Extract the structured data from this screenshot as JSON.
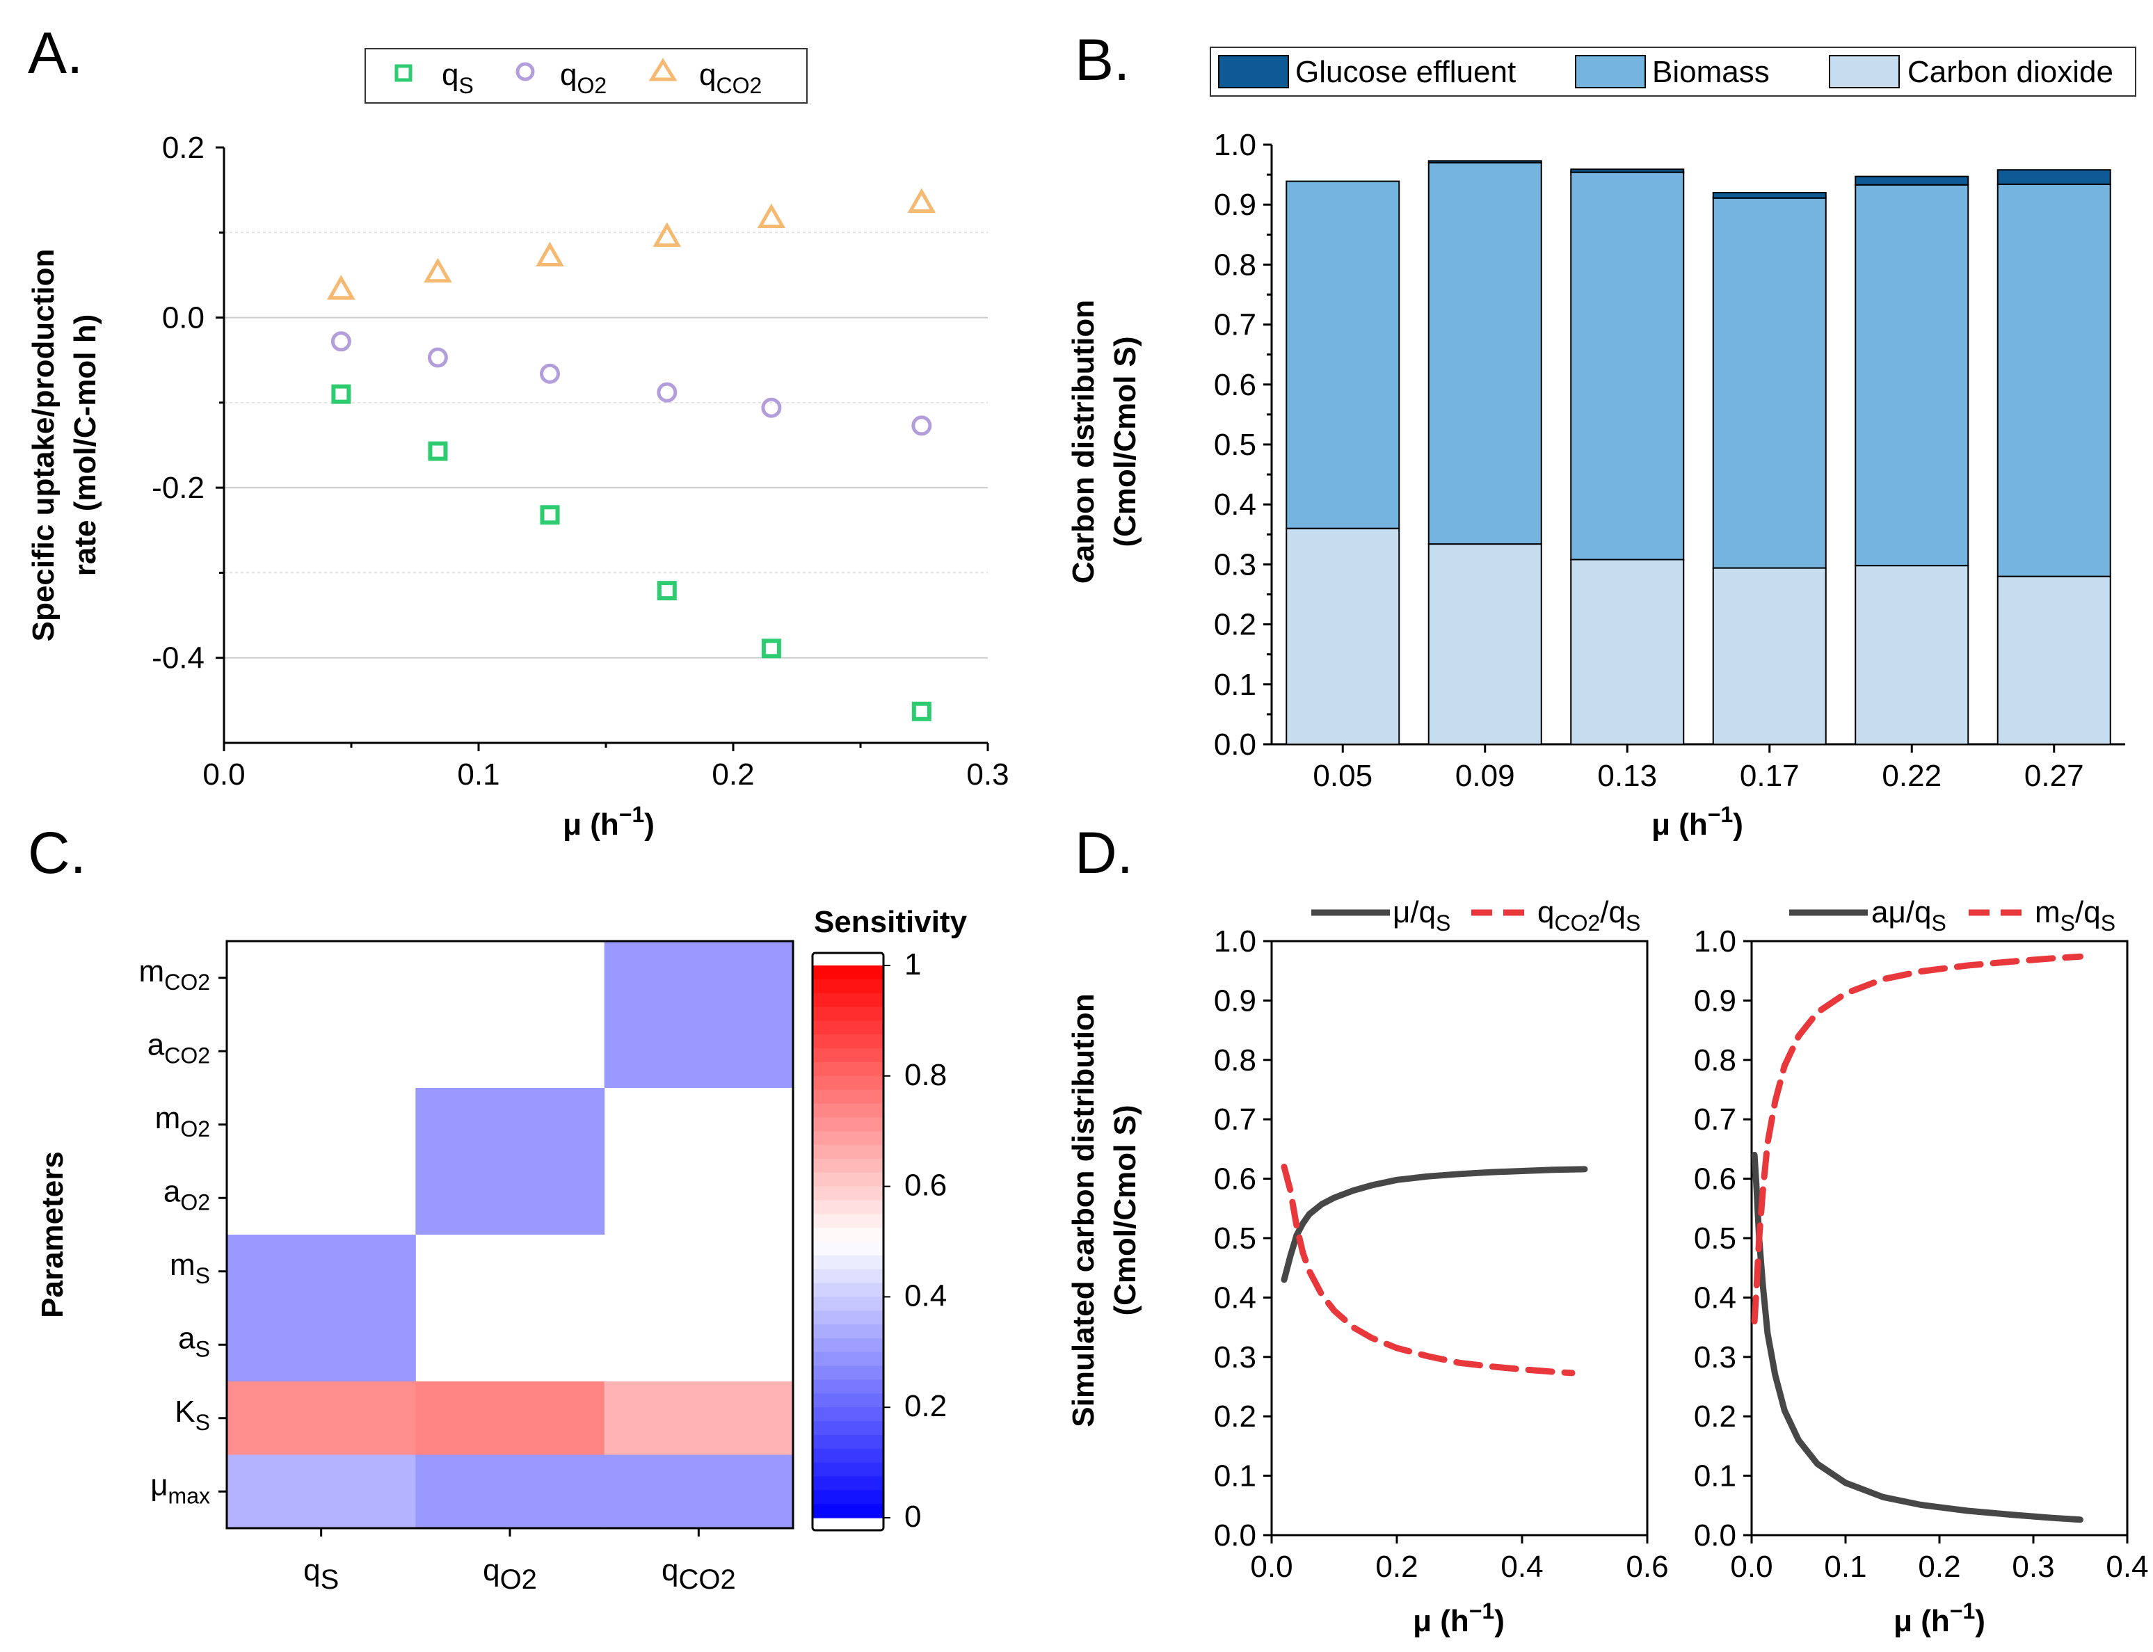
{
  "figure": {
    "panels": {
      "A": "A.",
      "B": "B.",
      "C": "C.",
      "D": "D."
    },
    "colors": {
      "qS": "#2ecc71",
      "qO2": "#b39ddb",
      "qCO2": "#f5b971",
      "glucose_effluent": "#0d5a94",
      "biomass": "#76b4e0",
      "carbon_dioxide": "#c6ddef",
      "curve_dark": "#474747",
      "curve_red": "#e8383b"
    }
  },
  "chart_data": [
    {
      "id": "A",
      "type": "scatter",
      "xlabel": "μ (h⁻¹)",
      "ylabel_line1": "Specific uptake/production",
      "ylabel_line2": "rate (mol/C-mol h)",
      "xlim": [
        0,
        0.3
      ],
      "ylim": [
        -0.5,
        0.2
      ],
      "xticks": [
        "0.0",
        "0.1",
        "0.2",
        "0.3"
      ],
      "yticks": [
        "0.2",
        "0.0",
        "-0.2",
        "-0.4"
      ],
      "x": [
        0.046,
        0.084,
        0.128,
        0.174,
        0.215,
        0.274
      ],
      "series": [
        {
          "name": "qS",
          "label": "q",
          "sub": "S",
          "marker": "square",
          "values": [
            -0.09,
            -0.157,
            -0.232,
            -0.321,
            -0.389,
            -0.463
          ]
        },
        {
          "name": "qO2",
          "label": "q",
          "sub": "O2",
          "marker": "circle",
          "values": [
            -0.028,
            -0.047,
            -0.066,
            -0.088,
            -0.106,
            -0.127
          ]
        },
        {
          "name": "qCO2",
          "label": "q",
          "sub": "CO2",
          "marker": "triangle",
          "values": [
            0.033,
            0.053,
            0.072,
            0.095,
            0.117,
            0.135
          ]
        }
      ]
    },
    {
      "id": "B",
      "type": "bar",
      "stacked": true,
      "xlabel": "μ (h⁻¹)",
      "ylabel_line1": "Carbon distribution",
      "ylabel_line2": "(Cmol/Cmol S)",
      "ylim": [
        0,
        1.0
      ],
      "yticks": [
        "0.0",
        "0.1",
        "0.2",
        "0.3",
        "0.4",
        "0.5",
        "0.6",
        "0.7",
        "0.8",
        "0.9",
        "1.0"
      ],
      "categories": [
        "0.05",
        "0.09",
        "0.13",
        "0.17",
        "0.22",
        "0.27"
      ],
      "series": [
        {
          "name": "Carbon dioxide",
          "values": [
            0.36,
            0.334,
            0.308,
            0.294,
            0.298,
            0.28
          ]
        },
        {
          "name": "Biomass",
          "values": [
            0.579,
            0.636,
            0.646,
            0.617,
            0.635,
            0.654
          ]
        },
        {
          "name": "Glucose effluent",
          "values": [
            0.0,
            0.003,
            0.005,
            0.009,
            0.014,
            0.024
          ]
        }
      ],
      "legend": [
        "Glucose effluent",
        "Biomass",
        "Carbon dioxide"
      ]
    },
    {
      "id": "C",
      "type": "heatmap",
      "ylabel": "Parameters",
      "colorbar_title": "Sensitivity",
      "colorbar_ticks": [
        "1",
        "0.8",
        "0.6",
        "0.4",
        "0.2",
        "0"
      ],
      "columns": [
        {
          "base": "q",
          "sub": "S"
        },
        {
          "base": "q",
          "sub": "O2"
        },
        {
          "base": "q",
          "sub": "CO2"
        }
      ],
      "rows": [
        {
          "base": "m",
          "sub": "CO2"
        },
        {
          "base": "a",
          "sub": "CO2"
        },
        {
          "base": "m",
          "sub": "O2"
        },
        {
          "base": "a",
          "sub": "O2"
        },
        {
          "base": "m",
          "sub": "S"
        },
        {
          "base": "a",
          "sub": "S"
        },
        {
          "base": "K",
          "sub": "S"
        },
        {
          "base": "μ",
          "sub": "max"
        }
      ],
      "blocks": [
        {
          "col": 2,
          "row_from": 0,
          "row_to": 1,
          "value": 0.3
        },
        {
          "col": 1,
          "row_from": 2,
          "row_to": 3,
          "value": 0.3
        },
        {
          "col": 0,
          "row_from": 4,
          "row_to": 5,
          "value": 0.3
        },
        {
          "col": 0,
          "row_from": 6,
          "row_to": 6,
          "value": 0.72
        },
        {
          "col": 1,
          "row_from": 6,
          "row_to": 6,
          "value": 0.74
        },
        {
          "col": 2,
          "row_from": 6,
          "row_to": 6,
          "value": 0.65
        },
        {
          "col": 0,
          "row_from": 7,
          "row_to": 7,
          "value": 0.35
        },
        {
          "col": 1,
          "row_from": 7,
          "row_to": 7,
          "value": 0.3
        },
        {
          "col": 2,
          "row_from": 7,
          "row_to": 7,
          "value": 0.3
        }
      ]
    },
    {
      "id": "D1",
      "type": "line",
      "xlabel": "μ (h⁻¹)",
      "ylabel_line1": "Simulated carbon distribution",
      "ylabel_line2": "(Cmol/Cmol S)",
      "xlim": [
        0,
        0.6
      ],
      "ylim": [
        0,
        1.0
      ],
      "xticks": [
        "0.0",
        "0.2",
        "0.4",
        "0.6"
      ],
      "yticks": [
        "0.0",
        "0.1",
        "0.2",
        "0.3",
        "0.4",
        "0.5",
        "0.6",
        "0.7",
        "0.8",
        "0.9",
        "1.0"
      ],
      "series": [
        {
          "name": "μ/qS",
          "label": "μ/q",
          "sub": "S",
          "style": "solid",
          "x": [
            0.02,
            0.03,
            0.04,
            0.05,
            0.06,
            0.08,
            0.1,
            0.13,
            0.16,
            0.2,
            0.25,
            0.3,
            0.35,
            0.4,
            0.45,
            0.5
          ],
          "y": [
            0.43,
            0.47,
            0.505,
            0.525,
            0.54,
            0.557,
            0.568,
            0.58,
            0.589,
            0.598,
            0.604,
            0.608,
            0.611,
            0.613,
            0.615,
            0.616
          ]
        },
        {
          "name": "qCO2/qS",
          "label": "q",
          "sub": "CO2",
          "label_tail": "/q",
          "sub2": "S",
          "style": "dashed",
          "x": [
            0.02,
            0.03,
            0.04,
            0.05,
            0.06,
            0.08,
            0.1,
            0.13,
            0.16,
            0.2,
            0.25,
            0.3,
            0.35,
            0.4,
            0.45,
            0.48
          ],
          "y": [
            0.62,
            0.58,
            0.52,
            0.475,
            0.445,
            0.405,
            0.378,
            0.35,
            0.332,
            0.315,
            0.301,
            0.29,
            0.284,
            0.279,
            0.275,
            0.273
          ]
        }
      ]
    },
    {
      "id": "D2",
      "type": "line",
      "xlabel": "μ (h⁻¹)",
      "xlim": [
        0,
        0.4
      ],
      "ylim": [
        0,
        1.0
      ],
      "xticks": [
        "0.0",
        "0.1",
        "0.2",
        "0.3",
        "0.4"
      ],
      "yticks": [
        "0.0",
        "0.1",
        "0.2",
        "0.3",
        "0.4",
        "0.5",
        "0.6",
        "0.7",
        "0.8",
        "0.9",
        "1.0"
      ],
      "series": [
        {
          "name": "aμ/qS",
          "label": "aμ/q",
          "sub": "S",
          "style": "solid",
          "x": [
            0.003,
            0.005,
            0.008,
            0.012,
            0.017,
            0.025,
            0.035,
            0.05,
            0.07,
            0.1,
            0.14,
            0.18,
            0.23,
            0.28,
            0.32,
            0.35
          ],
          "y": [
            0.64,
            0.59,
            0.5,
            0.42,
            0.34,
            0.27,
            0.21,
            0.16,
            0.12,
            0.088,
            0.064,
            0.051,
            0.041,
            0.034,
            0.029,
            0.026
          ]
        },
        {
          "name": "mS/qS",
          "label": "m",
          "sub": "S",
          "label_tail": "/q",
          "sub2": "S",
          "style": "dashed",
          "x": [
            0.003,
            0.005,
            0.008,
            0.012,
            0.017,
            0.025,
            0.035,
            0.05,
            0.07,
            0.1,
            0.14,
            0.18,
            0.23,
            0.28,
            0.32,
            0.35
          ],
          "y": [
            0.36,
            0.41,
            0.5,
            0.58,
            0.66,
            0.73,
            0.79,
            0.84,
            0.88,
            0.912,
            0.936,
            0.949,
            0.959,
            0.966,
            0.971,
            0.974
          ]
        }
      ]
    }
  ]
}
